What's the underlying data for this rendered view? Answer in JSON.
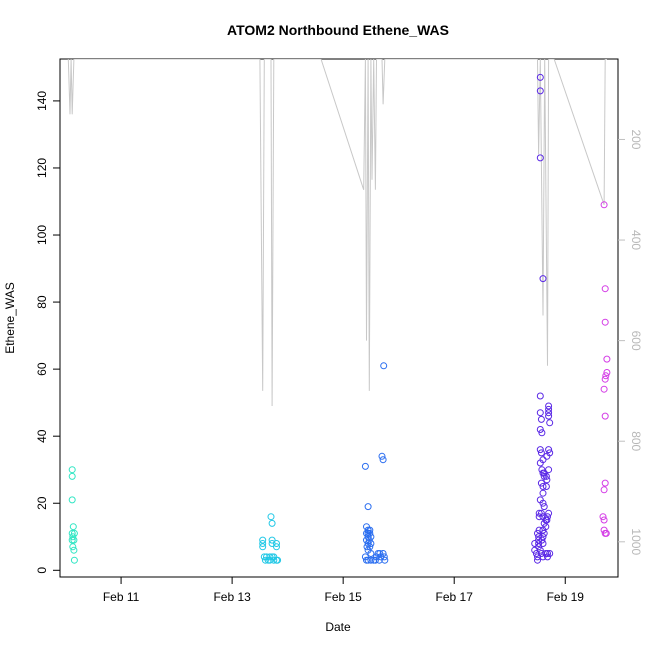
{
  "chart_data": {
    "type": "scatter",
    "title": "ATOM2 Northbound Ethene_WAS",
    "xlabel": "Date",
    "ylabel": "Ethene_WAS",
    "x_unit": "days in February (day of month)",
    "xlim": [
      9.9,
      19.95
    ],
    "ylim": [
      -2.0,
      152.5
    ],
    "x_ticks": [
      {
        "value": 11,
        "label": "Feb 11"
      },
      {
        "value": 13,
        "label": "Feb 13"
      },
      {
        "value": 15,
        "label": "Feb 15"
      },
      {
        "value": 17,
        "label": "Feb 17"
      },
      {
        "value": 19,
        "label": "Feb 19"
      }
    ],
    "y_ticks": [
      0,
      20,
      40,
      60,
      80,
      100,
      120,
      140
    ],
    "y2_axis": {
      "label": "",
      "reversed": true,
      "lim": [
        40,
        1070
      ],
      "ticks": [
        200,
        400,
        600,
        800,
        1000
      ],
      "color": "#c0c0c0"
    },
    "grid": false,
    "legend": "none",
    "series": [
      {
        "color": "#30e6c4",
        "points": [
          [
            10.12,
            30
          ],
          [
            10.12,
            28
          ],
          [
            10.12,
            21
          ],
          [
            10.14,
            13
          ],
          [
            10.12,
            11
          ],
          [
            10.16,
            11
          ],
          [
            10.13,
            10
          ],
          [
            10.15,
            9
          ],
          [
            10.12,
            9
          ],
          [
            10.13,
            7
          ],
          [
            10.15,
            6
          ],
          [
            10.16,
            3
          ]
        ]
      },
      {
        "color": "#21c8e6",
        "points": [
          [
            13.55,
            9
          ],
          [
            13.55,
            8
          ],
          [
            13.55,
            7
          ],
          [
            13.58,
            4
          ],
          [
            13.62,
            4
          ],
          [
            13.65,
            3
          ],
          [
            13.68,
            3
          ],
          [
            13.7,
            16
          ],
          [
            13.72,
            14
          ],
          [
            13.72,
            9
          ],
          [
            13.72,
            8
          ],
          [
            13.72,
            4
          ],
          [
            13.75,
            4
          ],
          [
            13.75,
            3
          ],
          [
            13.8,
            8
          ],
          [
            13.8,
            7
          ],
          [
            13.8,
            3
          ],
          [
            13.82,
            3
          ],
          [
            13.68,
            4
          ],
          [
            13.6,
            3
          ]
        ]
      },
      {
        "color": "#2b6ef0",
        "points": [
          [
            15.4,
            31
          ],
          [
            15.45,
            19
          ],
          [
            15.42,
            13
          ],
          [
            15.45,
            12
          ],
          [
            15.48,
            12
          ],
          [
            15.42,
            11
          ],
          [
            15.45,
            11
          ],
          [
            15.48,
            11
          ],
          [
            15.45,
            10
          ],
          [
            15.5,
            10
          ],
          [
            15.42,
            9
          ],
          [
            15.47,
            9
          ],
          [
            15.45,
            8
          ],
          [
            15.5,
            8
          ],
          [
            15.43,
            7
          ],
          [
            15.48,
            7
          ],
          [
            15.45,
            6
          ],
          [
            15.5,
            5
          ],
          [
            15.4,
            4
          ],
          [
            15.42,
            3
          ],
          [
            15.45,
            3
          ],
          [
            15.5,
            3
          ],
          [
            15.55,
            3
          ],
          [
            15.6,
            4
          ],
          [
            15.63,
            5
          ],
          [
            15.65,
            3
          ],
          [
            15.68,
            4
          ],
          [
            15.7,
            34
          ],
          [
            15.72,
            33
          ],
          [
            15.73,
            61
          ],
          [
            15.72,
            5
          ],
          [
            15.74,
            4
          ],
          [
            15.75,
            3
          ],
          [
            15.66,
            5
          ],
          [
            15.58,
            3
          ]
        ]
      },
      {
        "color": "#5a28e6",
        "points": [
          [
            18.45,
            8
          ],
          [
            18.45,
            6
          ],
          [
            18.48,
            5
          ],
          [
            18.5,
            4
          ],
          [
            18.5,
            3
          ],
          [
            18.5,
            11
          ],
          [
            18.52,
            10
          ],
          [
            18.52,
            9
          ],
          [
            18.52,
            8
          ],
          [
            18.52,
            7
          ],
          [
            18.53,
            17
          ],
          [
            18.53,
            16
          ],
          [
            18.53,
            12
          ],
          [
            18.55,
            147
          ],
          [
            18.55,
            143
          ],
          [
            18.55,
            123
          ],
          [
            18.6,
            87
          ],
          [
            18.55,
            52
          ],
          [
            18.55,
            47
          ],
          [
            18.57,
            45
          ],
          [
            18.55,
            42
          ],
          [
            18.58,
            41
          ],
          [
            18.55,
            36
          ],
          [
            18.57,
            35
          ],
          [
            18.6,
            33
          ],
          [
            18.55,
            32
          ],
          [
            18.58,
            30
          ],
          [
            18.6,
            29
          ],
          [
            18.62,
            29
          ],
          [
            18.62,
            28
          ],
          [
            18.57,
            26
          ],
          [
            18.6,
            25
          ],
          [
            18.6,
            23
          ],
          [
            18.55,
            21
          ],
          [
            18.6,
            20
          ],
          [
            18.62,
            19
          ],
          [
            18.57,
            17
          ],
          [
            18.6,
            16
          ],
          [
            18.65,
            15
          ],
          [
            18.62,
            14
          ],
          [
            18.65,
            13
          ],
          [
            18.6,
            12
          ],
          [
            18.62,
            11
          ],
          [
            18.6,
            10
          ],
          [
            18.58,
            9
          ],
          [
            18.6,
            8
          ],
          [
            18.55,
            6
          ],
          [
            18.57,
            5
          ],
          [
            18.6,
            4
          ],
          [
            18.65,
            5
          ],
          [
            18.68,
            5
          ],
          [
            18.7,
            49
          ],
          [
            18.7,
            48
          ],
          [
            18.7,
            47
          ],
          [
            18.7,
            46
          ],
          [
            18.72,
            44
          ],
          [
            18.7,
            36
          ],
          [
            18.72,
            35
          ],
          [
            18.67,
            34
          ],
          [
            18.7,
            30
          ],
          [
            18.66,
            28
          ],
          [
            18.67,
            27
          ],
          [
            18.66,
            25
          ],
          [
            18.7,
            17
          ],
          [
            18.68,
            16
          ],
          [
            18.67,
            15
          ],
          [
            18.72,
            5
          ],
          [
            18.68,
            4
          ]
        ]
      },
      {
        "color": "#d43ce6",
        "points": [
          [
            19.7,
            109
          ],
          [
            19.72,
            84
          ],
          [
            19.72,
            74
          ],
          [
            19.75,
            63
          ],
          [
            19.75,
            59
          ],
          [
            19.73,
            58
          ],
          [
            19.72,
            57
          ],
          [
            19.7,
            54
          ],
          [
            19.72,
            46
          ],
          [
            19.72,
            26
          ],
          [
            19.7,
            24
          ],
          [
            19.68,
            16
          ],
          [
            19.7,
            15
          ],
          [
            19.7,
            12
          ],
          [
            19.72,
            11
          ],
          [
            19.74,
            11
          ]
        ]
      }
    ],
    "secondary_line": {
      "color": "#c8c8c8",
      "points": [
        [
          10.05,
          40
        ],
        [
          10.08,
          150
        ],
        [
          10.1,
          40
        ],
        [
          10.12,
          150
        ],
        [
          10.15,
          40
        ],
        [
          10.6,
          40
        ],
        [
          13.5,
          40
        ],
        [
          13.55,
          700
        ],
        [
          13.58,
          40
        ],
        [
          13.7,
          40
        ],
        [
          13.72,
          730
        ],
        [
          13.75,
          40
        ],
        [
          14.6,
          40
        ],
        [
          15.37,
          300
        ],
        [
          15.4,
          40
        ],
        [
          15.42,
          600
        ],
        [
          15.45,
          40
        ],
        [
          15.47,
          700
        ],
        [
          15.5,
          40
        ],
        [
          15.52,
          280
        ],
        [
          15.55,
          40
        ],
        [
          15.58,
          300
        ],
        [
          15.6,
          40
        ],
        [
          15.7,
          40
        ],
        [
          15.72,
          130
        ],
        [
          15.75,
          40
        ],
        [
          18.45,
          40
        ],
        [
          18.5,
          40
        ],
        [
          18.52,
          230
        ],
        [
          18.55,
          40
        ],
        [
          18.6,
          550
        ],
        [
          18.63,
          40
        ],
        [
          18.68,
          650
        ],
        [
          18.7,
          40
        ],
        [
          18.8,
          40
        ],
        [
          19.7,
          330
        ],
        [
          19.72,
          40
        ],
        [
          19.75,
          40
        ]
      ]
    }
  }
}
